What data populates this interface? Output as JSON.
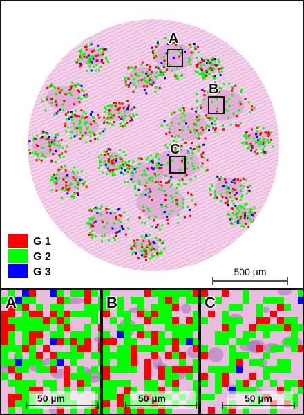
{
  "legend": {
    "items": [
      {
        "label": "G 1",
        "color": "#ff0000"
      },
      {
        "label": "G 2",
        "color": "#00ff00"
      },
      {
        "label": "G 3",
        "color": "#0000ff"
      }
    ]
  },
  "scale_bars": {
    "main": "500 µm",
    "inset": "50 µm"
  },
  "regions": [
    "A",
    "B",
    "C"
  ],
  "insets": [
    {
      "letter": "A",
      "scale": "50 µm"
    },
    {
      "letter": "B",
      "scale": "50 µm"
    },
    {
      "letter": "C",
      "scale": "50 µm"
    }
  ],
  "colors": {
    "tissue": "#f2c9e6",
    "stroma": "#e9b6d6",
    "g1": "#ff0000",
    "g2": "#00ff00",
    "g3": "#0000ff"
  }
}
